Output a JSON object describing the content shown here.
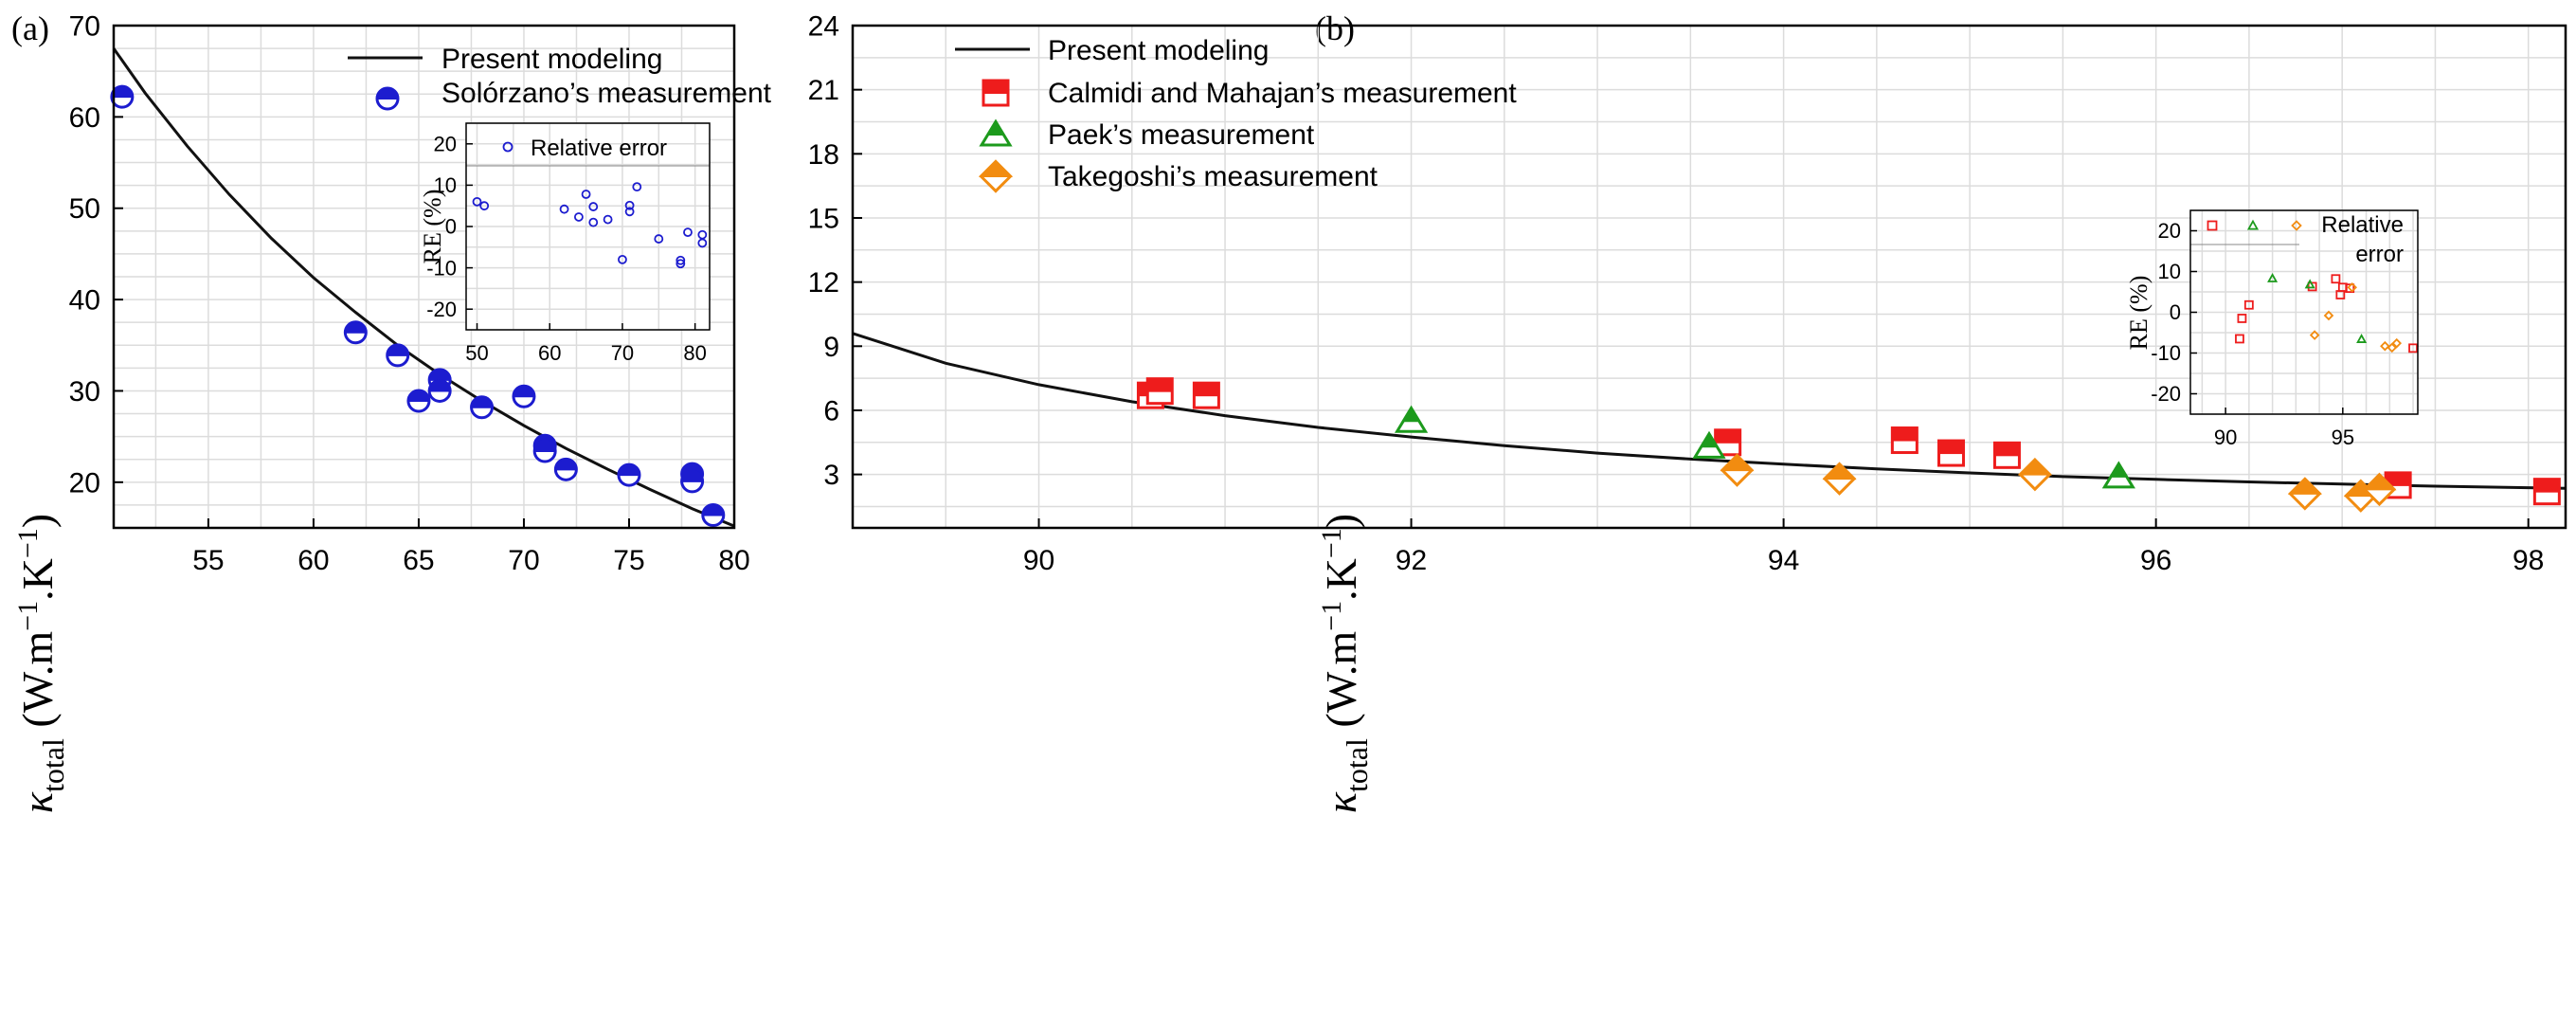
{
  "panels": {
    "a": {
      "label": "(a)"
    },
    "b": {
      "label": "(b)"
    }
  },
  "ylabel": {
    "symbol": "κ",
    "sub": "total",
    "unit_open": " (W.m",
    "exp1": "−1",
    "unit_mid": ".K",
    "exp2": "−1",
    "unit_close": ")"
  },
  "colors": {
    "model": "#111111",
    "solorzano": "#1c1ccf",
    "calmidi": "#ee1c1c",
    "paek": "#1c9a1c",
    "takegoshi": "#f28c10",
    "grid": "#dcdcdc"
  },
  "chart_data": [
    {
      "type": "scatter",
      "panel": "(a)",
      "xlim": [
        50.5,
        80
      ],
      "ylim": [
        15,
        70
      ],
      "xticks": [
        55,
        60,
        65,
        70,
        75,
        80
      ],
      "yticks": [
        20,
        30,
        40,
        50,
        60,
        70
      ],
      "grid": true,
      "legend_position": "top-right",
      "legend": [
        "Present modeling",
        "Solórzano’s measurement"
      ],
      "model_curve": {
        "name": "Present modeling",
        "x": [
          50.5,
          52,
          54,
          56,
          58,
          60,
          62,
          64,
          66,
          68,
          70,
          72,
          74,
          76,
          78,
          80
        ],
        "y": [
          67.5,
          62.6,
          56.8,
          51.5,
          46.7,
          42.4,
          38.6,
          35.0,
          31.8,
          28.9,
          26.2,
          23.7,
          21.4,
          19.2,
          17.1,
          15.2
        ]
      },
      "series": [
        {
          "name": "Solórzano’s measurement",
          "marker": "half-circle",
          "points": [
            [
              50.9,
              62.2
            ],
            [
              62,
              36.4
            ],
            [
              64,
              33.9
            ],
            [
              65,
              28.9
            ],
            [
              66,
              31.2
            ],
            [
              66,
              30.0
            ],
            [
              68,
              28.2
            ],
            [
              70,
              29.4
            ],
            [
              71,
              24.0
            ],
            [
              71,
              23.4
            ],
            [
              72,
              21.4
            ],
            [
              75,
              20.8
            ],
            [
              78,
              20.9
            ],
            [
              78,
              20.1
            ],
            [
              79,
              16.4
            ]
          ]
        }
      ],
      "inset": {
        "type": "scatter",
        "ylabel": "RE  (%)",
        "legend": [
          "Relative error"
        ],
        "xlim": [
          48.5,
          82
        ],
        "ylim": [
          -25,
          25
        ],
        "xticks": [
          50,
          60,
          70,
          80
        ],
        "yticks": [
          -20,
          -10,
          0,
          10,
          20
        ],
        "points": [
          [
            50,
            6
          ],
          [
            51,
            5
          ],
          [
            62,
            4.2
          ],
          [
            64,
            2.3
          ],
          [
            65,
            7.8
          ],
          [
            66,
            4.8
          ],
          [
            66,
            1
          ],
          [
            68,
            1.7
          ],
          [
            70,
            -8
          ],
          [
            71,
            5.1
          ],
          [
            71,
            3.6
          ],
          [
            72,
            9.6
          ],
          [
            75,
            -3
          ],
          [
            78,
            -8.2
          ],
          [
            78,
            -9
          ],
          [
            79,
            -1.4
          ],
          [
            81,
            -2
          ],
          [
            81,
            -4
          ]
        ]
      }
    },
    {
      "type": "scatter",
      "panel": "(b)",
      "xlim": [
        89,
        98.2
      ],
      "ylim": [
        0.5,
        24
      ],
      "xticks": [
        90,
        92,
        94,
        96,
        98
      ],
      "yticks": [
        3,
        6,
        9,
        12,
        15,
        18,
        21,
        24
      ],
      "grid": true,
      "legend_position": "top-right",
      "legend": [
        "Present modeling",
        "Calmidi and Mahajan’s measurement",
        "Paek’s measurement",
        "Takegoshi’s measurement"
      ],
      "model_curve": {
        "name": "Present modeling",
        "x": [
          89,
          89.5,
          90,
          90.5,
          91,
          91.5,
          92,
          92.5,
          93,
          93.5,
          94,
          94.5,
          95,
          95.5,
          96,
          96.5,
          97,
          97.5,
          98,
          98.2
        ],
        "y": [
          9.6,
          8.2,
          7.2,
          6.4,
          5.75,
          5.2,
          4.75,
          4.35,
          4.0,
          3.72,
          3.48,
          3.26,
          3.07,
          2.9,
          2.77,
          2.65,
          2.55,
          2.45,
          2.38,
          2.35
        ]
      },
      "series": [
        {
          "name": "Calmidi and Mahajan’s measurement",
          "marker": "half-square",
          "points": [
            [
              90.6,
              6.7
            ],
            [
              90.65,
              6.9
            ],
            [
              90.9,
              6.7
            ],
            [
              93.7,
              4.5
            ],
            [
              94.65,
              4.6
            ],
            [
              94.9,
              4.0
            ],
            [
              95.2,
              3.9
            ],
            [
              97.3,
              2.5
            ],
            [
              98.1,
              2.2
            ]
          ]
        },
        {
          "name": "Paek’s measurement",
          "marker": "half-triangle",
          "points": [
            [
              92,
              5.5
            ],
            [
              93.6,
              4.3
            ],
            [
              95.8,
              2.9
            ]
          ]
        },
        {
          "name": "Takegoshi’s measurement",
          "marker": "half-diamond",
          "points": [
            [
              93.75,
              3.2
            ],
            [
              94.3,
              2.8
            ],
            [
              95.35,
              3.0
            ],
            [
              96.8,
              2.1
            ],
            [
              97.1,
              2.0
            ],
            [
              97.2,
              2.3
            ]
          ]
        }
      ],
      "inset": {
        "type": "scatter",
        "ylabel": "RE  (%)",
        "legend": [
          "Relative",
          "error"
        ],
        "xlim": [
          88.5,
          98.2
        ],
        "ylim": [
          -25,
          25
        ],
        "xticks": [
          90,
          95
        ],
        "yticks": [
          -20,
          -10,
          0,
          10,
          20
        ],
        "series": [
          {
            "name": "Calmidi and Mahajan’s measurement",
            "marker": "square",
            "points": [
              [
                90.6,
                -6.5
              ],
              [
                90.7,
                -1.5
              ],
              [
                91,
                1.8
              ],
              [
                93.7,
                6.3
              ],
              [
                94.7,
                8.2
              ],
              [
                94.9,
                4.3
              ],
              [
                95,
                6.1
              ],
              [
                95.3,
                5.9
              ],
              [
                98,
                -8.8
              ]
            ]
          },
          {
            "name": "Paek’s measurement",
            "marker": "triangle",
            "points": [
              [
                92,
                8.3
              ],
              [
                93.6,
                6.8
              ],
              [
                95.8,
                -6.6
              ]
            ]
          },
          {
            "name": "Takegoshi’s measurement",
            "marker": "diamond",
            "points": [
              [
                93.8,
                -5.6
              ],
              [
                94.4,
                -0.8
              ],
              [
                95.4,
                6.1
              ],
              [
                96.8,
                -8.3
              ],
              [
                97.1,
                -8.7
              ],
              [
                97.3,
                -7.6
              ]
            ]
          }
        ]
      }
    }
  ]
}
